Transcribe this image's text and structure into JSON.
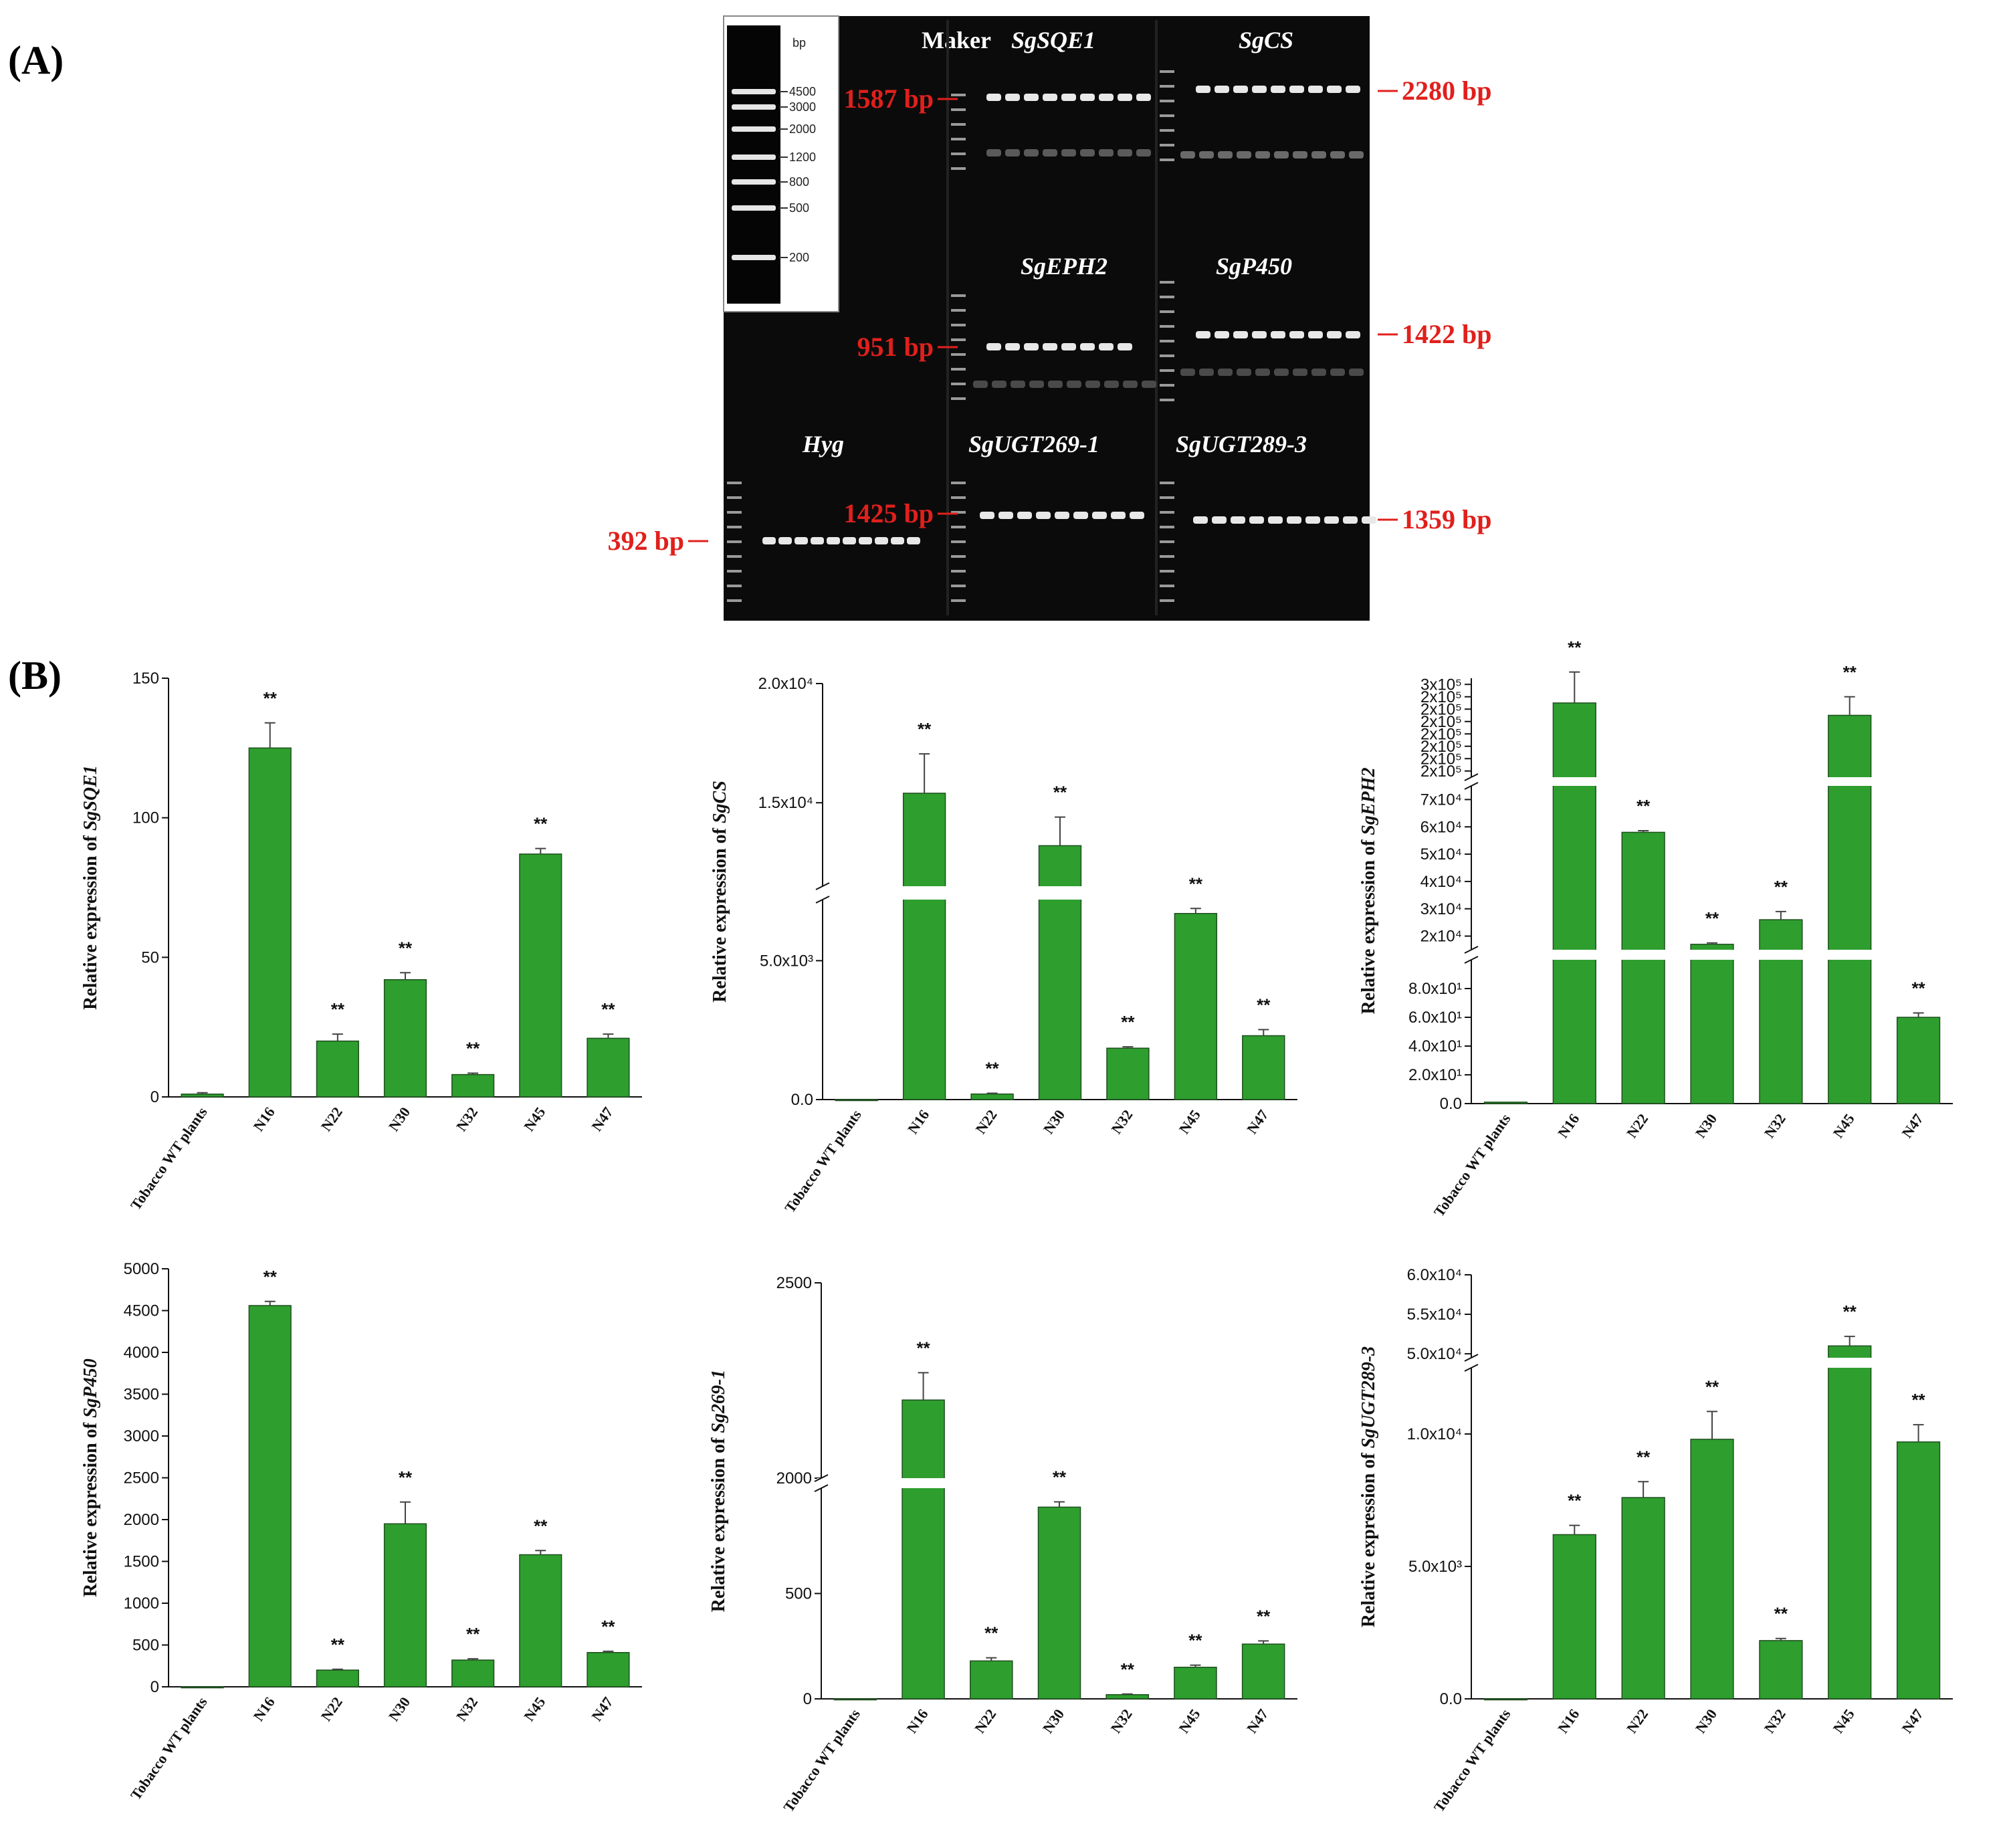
{
  "colors": {
    "bar": "#2e9e2e",
    "bar_edge": "#1f4f1f",
    "gel_bg": "#0b0b0b",
    "band": "#e8e8e8",
    "marker_red": "#e0201c"
  },
  "panel_a": {
    "letter": "(A)",
    "ladder": {
      "unit": "bp",
      "sizes": [
        "4500",
        "3000",
        "2000",
        "1200",
        "800",
        "500",
        "200"
      ]
    },
    "maker_label": "Maker",
    "gels": [
      {
        "label": "SgSQE1",
        "size": "1587 bp",
        "side": "left"
      },
      {
        "label": "SgCS",
        "size": "2280 bp",
        "side": "right"
      },
      {
        "label": "SgEPH2",
        "size": "951 bp",
        "side": "left"
      },
      {
        "label": "SgP450",
        "size": "1422 bp",
        "side": "right"
      },
      {
        "label": "Hyg",
        "size": "392 bp",
        "side": "left"
      },
      {
        "label": "SgUGT269-1",
        "size": "1425 bp",
        "side": "left"
      },
      {
        "label": "SgUGT289-3",
        "size": "1359 bp",
        "side": "right"
      }
    ]
  },
  "panel_b": {
    "letter": "(B)"
  },
  "chart_data": [
    {
      "type": "bar",
      "id": "sqe1",
      "ylabel_prefix": "Relative expression of ",
      "ylabel_gene": "SgSQE1",
      "categories": [
        "Tobacco WT plants",
        "N16",
        "N22",
        "N30",
        "N32",
        "N45",
        "N47"
      ],
      "values": [
        1,
        125,
        20,
        42,
        8,
        87,
        21
      ],
      "errors": [
        0.5,
        9,
        2.5,
        2.5,
        0.5,
        2,
        1.5
      ],
      "significance": [
        "",
        "**",
        "**",
        "**",
        "**",
        "**",
        "**"
      ],
      "ylim": [
        0,
        150
      ],
      "ticks": [
        {
          "v": 0,
          "label": "0"
        },
        {
          "v": 50,
          "label": "50"
        },
        {
          "v": 100,
          "label": "100"
        },
        {
          "v": 150,
          "label": "150"
        }
      ]
    },
    {
      "type": "bar",
      "id": "cs",
      "ylabel_prefix": "Relative expression of ",
      "ylabel_gene": "SgCS",
      "categories": [
        "Tobacco WT plants",
        "N16",
        "N22",
        "N30",
        "N32",
        "N45",
        "N47"
      ],
      "values": [
        0,
        15400,
        200,
        13200,
        1850,
        6700,
        2300
      ],
      "errors": [
        0,
        1650,
        30,
        1200,
        50,
        180,
        220
      ],
      "significance": [
        "",
        "**",
        "**",
        "**",
        "**",
        "**",
        "**"
      ],
      "axis_break": [
        7200,
        11500
      ],
      "segments": [
        {
          "range": [
            0,
            7200
          ]
        },
        {
          "range": [
            11500,
            20000
          ]
        }
      ],
      "ticks": [
        {
          "v": 0,
          "label": "0.0"
        },
        {
          "v": 5000,
          "label": "5.0x10³"
        },
        {
          "v": 15000,
          "label": "1.5x10⁴"
        },
        {
          "v": 20000,
          "label": "2.0x10⁴"
        }
      ]
    },
    {
      "type": "bar",
      "id": "eph2",
      "ylabel_prefix": "Relative expression of ",
      "ylabel_gene": "SgEPH2",
      "categories": [
        "Tobacco WT plants",
        "N16",
        "N22",
        "N30",
        "N32",
        "N45",
        "N47"
      ],
      "values": [
        1,
        300000,
        58000,
        17000,
        26000,
        290000,
        60
      ],
      "errors": [
        0,
        25000,
        600,
        500,
        3000,
        15000,
        3
      ],
      "significance": [
        "",
        "**",
        "**",
        "**",
        "**",
        "**",
        "**"
      ],
      "axis_breaks": [
        [
          100,
          15000
        ],
        [
          75000,
          240000
        ]
      ],
      "segments": [
        {
          "range": [
            0,
            100
          ]
        },
        {
          "range": [
            15000,
            75000
          ]
        },
        {
          "range": [
            240000,
            320000
          ]
        }
      ],
      "ticks": [
        {
          "v": 0,
          "label": "0.0"
        },
        {
          "v": 20,
          "label": "2.0x10¹"
        },
        {
          "v": 40,
          "label": "4.0x10¹"
        },
        {
          "v": 60,
          "label": "6.0x10¹"
        },
        {
          "v": 80,
          "label": "8.0x10¹"
        },
        {
          "v": 20000,
          "label": "2x10⁴"
        },
        {
          "v": 30000,
          "label": "3x10⁴"
        },
        {
          "v": 40000,
          "label": "4x10⁴"
        },
        {
          "v": 50000,
          "label": "5x10⁴"
        },
        {
          "v": 60000,
          "label": "6x10⁴"
        },
        {
          "v": 70000,
          "label": "7x10⁴"
        },
        {
          "v": 245000,
          "label": "2x10⁵"
        },
        {
          "v": 255000,
          "label": "2x10⁵"
        },
        {
          "v": 265000,
          "label": "2x10⁵"
        },
        {
          "v": 275000,
          "label": "2x10⁵"
        },
        {
          "v": 285000,
          "label": "2x10⁵"
        },
        {
          "v": 295000,
          "label": "2x10⁵"
        },
        {
          "v": 305000,
          "label": "2x10⁵"
        },
        {
          "v": 315000,
          "label": "3x10⁵"
        }
      ]
    },
    {
      "type": "bar",
      "id": "p450",
      "ylabel_prefix": "Relative expression of ",
      "ylabel_gene": "SgP450",
      "categories": [
        "Tobacco WT plants",
        "N16",
        "N22",
        "N30",
        "N32",
        "N45",
        "N47"
      ],
      "values": [
        0,
        4560,
        200,
        1950,
        320,
        1580,
        410
      ],
      "errors": [
        0,
        50,
        10,
        260,
        15,
        50,
        15
      ],
      "significance": [
        "",
        "**",
        "**",
        "**",
        "**",
        "**",
        "**"
      ],
      "ylim": [
        0,
        5000
      ],
      "ticks": [
        {
          "v": 0,
          "label": "0"
        },
        {
          "v": 500,
          "label": "500"
        },
        {
          "v": 1000,
          "label": "1000"
        },
        {
          "v": 1500,
          "label": "1500"
        },
        {
          "v": 2000,
          "label": "2000"
        },
        {
          "v": 2500,
          "label": "2500"
        },
        {
          "v": 3000,
          "label": "3000"
        },
        {
          "v": 3500,
          "label": "3500"
        },
        {
          "v": 4000,
          "label": "4000"
        },
        {
          "v": 4500,
          "label": "4500"
        },
        {
          "v": 5000,
          "label": "5000"
        }
      ]
    },
    {
      "type": "bar",
      "id": "ugt269",
      "ylabel_prefix": "Relative expression of ",
      "ylabel_gene": "Sg269-1",
      "categories": [
        "Tobacco WT plants",
        "N16",
        "N22",
        "N30",
        "N32",
        "N45",
        "N47"
      ],
      "values": [
        0,
        2200,
        180,
        910,
        20,
        150,
        260
      ],
      "errors": [
        0,
        70,
        15,
        25,
        3,
        10,
        15
      ],
      "significance": [
        "",
        "**",
        "**",
        "**",
        "**",
        "**",
        "**"
      ],
      "axis_break": [
        1000,
        2000
      ],
      "segments": [
        {
          "range": [
            0,
            1000
          ]
        },
        {
          "range": [
            2000,
            2500
          ]
        }
      ],
      "ticks": [
        {
          "v": 0,
          "label": "0"
        },
        {
          "v": 500,
          "label": "500"
        },
        {
          "v": 2000,
          "label": "2000"
        },
        {
          "v": 2500,
          "label": "2500"
        }
      ]
    },
    {
      "type": "bar",
      "id": "ugt289",
      "ylabel_prefix": "Relative expression of ",
      "ylabel_gene": "SgUGT289-3",
      "categories": [
        "Tobacco WT plants",
        "N16",
        "N22",
        "N30",
        "N32",
        "N45",
        "N47"
      ],
      "values": [
        0,
        6200,
        7600,
        9800,
        2200,
        51000,
        9700
      ],
      "errors": [
        0,
        350,
        600,
        1050,
        80,
        1200,
        650
      ],
      "significance": [
        "",
        "**",
        "**",
        "**",
        "**",
        "**",
        "**"
      ],
      "axis_break": [
        12500,
        49500
      ],
      "segments": [
        {
          "range": [
            0,
            12500
          ]
        },
        {
          "range": [
            49500,
            60000
          ]
        }
      ],
      "ticks": [
        {
          "v": 0,
          "label": "0.0"
        },
        {
          "v": 5000,
          "label": "5.0x10³"
        },
        {
          "v": 10000,
          "label": "1.0x10⁴"
        },
        {
          "v": 50000,
          "label": "5.0x10⁴"
        },
        {
          "v": 55000,
          "label": "5.5x10⁴"
        },
        {
          "v": 60000,
          "label": "6.0x10⁴"
        }
      ]
    }
  ]
}
